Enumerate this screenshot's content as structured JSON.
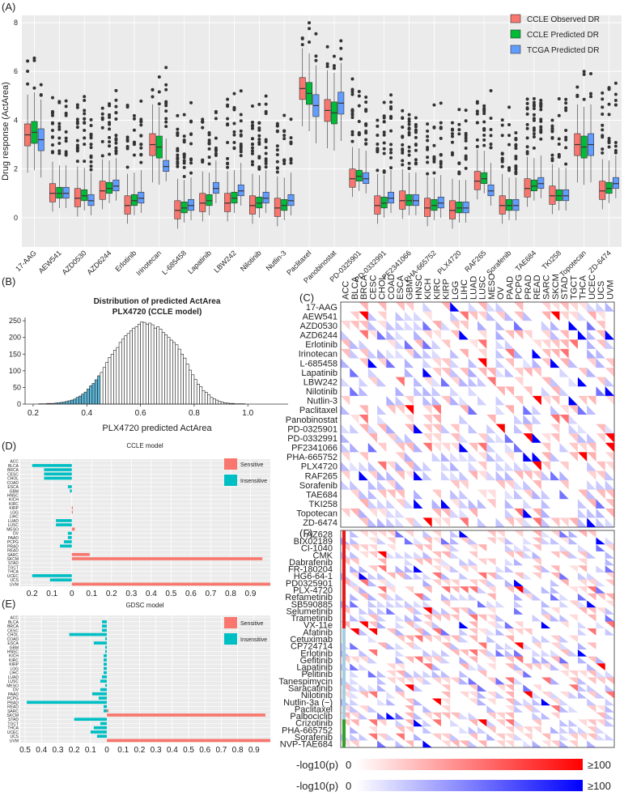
{
  "panel_labels": {
    "a": "(A)",
    "b": "(B)",
    "c": "(C)",
    "d": "(D)",
    "e": "(E)",
    "f": "(F)"
  },
  "colors": {
    "observed": "#F8766D",
    "predicted": "#00BA38",
    "tcga": "#619CFF",
    "sensitive": "#F8766D",
    "insensitive": "#00BFC4",
    "panel_bg": "#EBEBEB",
    "red": "#FF0000",
    "blue": "#0000FF",
    "hist_blue": "#5AB4D6",
    "hist_red": "#C0141E"
  },
  "chart_data": [
    {
      "type": "box",
      "ylabel": "Drug response (ActArea)",
      "ylim": [
        -1.2,
        8.3
      ],
      "yticks": [
        0,
        2,
        4,
        6,
        8
      ],
      "legend_position": "top-right",
      "series": [
        {
          "name": "CCLE Observed DR"
        },
        {
          "name": "CCLE Predicted DR"
        },
        {
          "name": "TCGA Predicted DR"
        }
      ],
      "categories": [
        "17-AAG",
        "AEW541",
        "AZD0530",
        "AZD6244",
        "Erlotinib",
        "Irinotecan",
        "L-685458",
        "Lapatinib",
        "LBW242",
        "Nilotinib",
        "Nutlin-3",
        "Paclitaxel",
        "Panobinostat",
        "PD-0325901",
        "PD-0332991",
        "PF2341066",
        "PHA-665752",
        "PLX4720",
        "RAF265",
        "Sorafenib",
        "TAE684",
        "TKI258",
        "Topotecan",
        "ZD-6474"
      ],
      "medians": [
        [
          3.4,
          3.5,
          3.2
        ],
        [
          1.0,
          1.0,
          1.0
        ],
        [
          0.8,
          0.9,
          0.7
        ],
        [
          1.1,
          1.2,
          1.3
        ],
        [
          0.5,
          0.7,
          0.8
        ],
        [
          3.0,
          2.9,
          2.1
        ],
        [
          0.3,
          0.4,
          0.5
        ],
        [
          0.6,
          0.7,
          1.2
        ],
        [
          0.6,
          0.8,
          1.1
        ],
        [
          0.5,
          0.6,
          0.8
        ],
        [
          0.4,
          0.5,
          0.7
        ],
        [
          5.3,
          5.1,
          4.6
        ],
        [
          4.4,
          4.3,
          4.7
        ],
        [
          1.6,
          1.7,
          1.6
        ],
        [
          0.5,
          0.6,
          0.8
        ],
        [
          0.7,
          0.7,
          0.7
        ],
        [
          0.4,
          0.5,
          0.6
        ],
        [
          0.3,
          0.4,
          0.4
        ],
        [
          1.5,
          1.6,
          1.1
        ],
        [
          0.5,
          0.5,
          0.5
        ],
        [
          1.2,
          1.3,
          1.4
        ],
        [
          0.9,
          0.9,
          0.9
        ],
        [
          3.0,
          2.9,
          3.0
        ],
        [
          1.1,
          1.2,
          1.4
        ]
      ]
    },
    {
      "type": "bar",
      "title": "Distribution of predicted ActArea",
      "subtitle": "PLX4720 (CCLE model)",
      "xlabel": "PLX4720 predicted ActArea",
      "xlim": [
        0.17,
        1.15
      ],
      "ylim": [
        0,
        260
      ],
      "xticks": [
        0.2,
        0.4,
        0.6,
        0.8,
        1.0
      ],
      "xtick_labels": [
        "0.2",
        "0.4",
        "0.6",
        "0.8",
        "1.0"
      ],
      "yticks": [
        0,
        50,
        100,
        150,
        200,
        250
      ],
      "bin_start": 0.22,
      "bin_width": 0.01,
      "low_cutoff": 0.45,
      "high_cutoff": 0.94,
      "counts": [
        1,
        1,
        1,
        2,
        2,
        2,
        3,
        4,
        5,
        6,
        8,
        10,
        12,
        15,
        20,
        24,
        30,
        36,
        45,
        55,
        62,
        73,
        85,
        95,
        110,
        125,
        140,
        150,
        162,
        170,
        185,
        195,
        205,
        212,
        220,
        228,
        232,
        240,
        247,
        245,
        240,
        243,
        238,
        228,
        232,
        225,
        215,
        208,
        200,
        192,
        185,
        178,
        165,
        150,
        138,
        120,
        102,
        88,
        74,
        60,
        52,
        40,
        35,
        28,
        20,
        16,
        12,
        8,
        6,
        4,
        3,
        2,
        2,
        1,
        1,
        1,
        1
      ]
    },
    {
      "type": "heatmap",
      "columns": [
        "ACC",
        "BLCA",
        "BRCA",
        "CESC",
        "CHOL",
        "COAD",
        "ESCA",
        "GBM",
        "HNSC",
        "KICH",
        "KIRC",
        "KIRP",
        "LGG",
        "LIHC",
        "LUAD",
        "LUSC",
        "MESO",
        "OV",
        "PAAD",
        "PCPG",
        "PRAD",
        "READ",
        "SARC",
        "SKCM",
        "STAD",
        "TGCT",
        "THCA",
        "UCEC",
        "UCS",
        "UVM"
      ],
      "rows": [
        "17-AAG",
        "AEW541",
        "AZD0530",
        "AZD6244",
        "Erlotinib",
        "Irinotecan",
        "L-685458",
        "Lapatinib",
        "LBW242",
        "Nilotinib",
        "Nutlin-3",
        "Paclitaxel",
        "Panobinostat",
        "PD-0325901",
        "PD-0332991",
        "PF2341066",
        "PHA-665752",
        "PLX4720",
        "RAF265",
        "Sorafenib",
        "TAE684",
        "TKI258",
        "Topotecan",
        "ZD-6474"
      ]
    },
    {
      "type": "bar",
      "title": "CCLE model",
      "orientation": "horizontal",
      "categories": [
        "ACC",
        "BLCA",
        "BRCA",
        "CESC",
        "CHOL",
        "COAD",
        "ESCA",
        "GBM",
        "HNSC",
        "KICH",
        "KIRC",
        "KIRP",
        "LGG",
        "LIHC",
        "LUAD",
        "LUSC",
        "MESO",
        "OV",
        "PAAD",
        "PCPG",
        "PRAD",
        "READ",
        "SARC",
        "SKCM",
        "STAD",
        "TGCT",
        "THCA",
        "UCEC",
        "UCS",
        "UVM"
      ],
      "xlim": [
        -0.26,
        1.0
      ],
      "xticks": [
        -0.2,
        -0.1,
        0,
        0.1,
        0.2,
        0.3,
        0.4,
        0.5,
        0.6,
        0.7,
        0.8,
        0.9
      ],
      "xtick_labels": [
        "0.2",
        "0.1",
        "0",
        "0.1",
        "0.2",
        "0.3",
        "0.4",
        "0.5",
        "0.6",
        "0.7",
        "0.8",
        "0.9"
      ],
      "legend_position": "top-right",
      "series": [
        {
          "name": "Sensitive",
          "values": [
            0,
            0,
            0,
            0,
            0,
            0,
            0,
            0,
            0,
            0,
            0,
            0.005,
            0.005,
            0,
            0,
            0,
            0.015,
            0,
            0,
            0,
            0,
            0,
            0.09,
            0.96,
            0,
            0,
            0,
            0,
            0,
            1.0
          ]
        },
        {
          "name": "Insensitive",
          "values": [
            0,
            0.2,
            0.14,
            0.14,
            0.14,
            0,
            0.02,
            0.01,
            0,
            0,
            0,
            0,
            0,
            0,
            0.08,
            0.08,
            0,
            0.02,
            0.02,
            0.04,
            0.06,
            0,
            0,
            0,
            0,
            0,
            0,
            0.2,
            0.11,
            0
          ]
        }
      ]
    },
    {
      "type": "bar",
      "title": "GDSC model",
      "orientation": "horizontal",
      "categories": [
        "ACC",
        "BLCA",
        "BRCA",
        "CESC",
        "CHOL",
        "COAD",
        "ESCA",
        "GBM",
        "HNSC",
        "KICH",
        "KIRC",
        "KIRP",
        "LGG",
        "LIHC",
        "LUAD",
        "LUSC",
        "MESO",
        "OV",
        "PAAD",
        "PCPG",
        "PRAD",
        "READ",
        "SARC",
        "SKCM",
        "STAD",
        "TGCT",
        "THCA",
        "UCEC",
        "UCS",
        "UVM"
      ],
      "xlim": [
        -0.53,
        1.0
      ],
      "xticks": [
        -0.5,
        -0.4,
        -0.3,
        -0.2,
        -0.1,
        0,
        0.1,
        0.2,
        0.3,
        0.4,
        0.5,
        0.6,
        0.7,
        0.8,
        0.9
      ],
      "xtick_labels": [
        "0.5",
        "0.4",
        "0.3",
        "0.2",
        "0.1",
        "0",
        "0.1",
        "0.2",
        "0.3",
        "0.4",
        "0.5",
        "0.6",
        "0.7",
        "0.8",
        "0.9"
      ],
      "legend_position": "top-right",
      "series": [
        {
          "name": "Sensitive",
          "values": [
            0,
            0,
            0,
            0,
            0,
            0,
            0,
            0,
            0,
            0,
            0,
            0,
            0,
            0,
            0,
            0,
            0,
            0,
            0,
            0,
            0,
            0,
            0.01,
            0.97,
            0,
            0,
            0,
            0,
            0,
            1.0
          ]
        },
        {
          "name": "Insensitive",
          "values": [
            0,
            0.03,
            0.03,
            0.03,
            0.23,
            0.01,
            0.08,
            0.01,
            0.01,
            0.02,
            0.02,
            0.02,
            0.02,
            0.02,
            0.03,
            0.04,
            0.01,
            0.04,
            0.09,
            0.05,
            0.49,
            0.02,
            0.02,
            0,
            0.2,
            0.04,
            0.08,
            0.1,
            0.06,
            0
          ]
        }
      ]
    },
    {
      "type": "heatmap",
      "columns": [
        "ACC",
        "BLCA",
        "BRCA",
        "CESC",
        "CHOL",
        "COAD",
        "ESCA",
        "GBM",
        "HNSC",
        "KICH",
        "KIRC",
        "KIRP",
        "LGG",
        "LIHC",
        "LUAD",
        "LUSC",
        "MESO",
        "OV",
        "PAAD",
        "PCPG",
        "PRAD",
        "READ",
        "SARC",
        "SKCM",
        "STAD",
        "TGCT",
        "THCA",
        "UCEC",
        "UCS",
        "UVM"
      ],
      "rows": [
        "AZ628",
        "BIX02189",
        "CI-1040",
        "CMK",
        "Dabrafenib",
        "FR-180204",
        "HG6-64-1",
        "PD0325901",
        "PLX-4720",
        "Refametinib",
        "SB590885",
        "Selumetinib",
        "Trametinib",
        "VX-11e",
        "Afatinib",
        "Cetuximab",
        "CP724714",
        "Erlotinib",
        "Gefitinib",
        "Lapatinib",
        "Pelitinib",
        "Tanespimycin",
        "Saracatinib",
        "Nilotinib",
        "Nutlin-3a (−)",
        "Paclitaxel",
        "Palbociclib",
        "Crizotinib",
        "PHA-665752",
        "Sorafenib",
        "NVP-TAE684"
      ],
      "group_bar_colors": [
        "#E31A1C",
        "#A6CEE3",
        "#33A02C"
      ]
    }
  ],
  "color_scale": {
    "label": "-log10(p)",
    "min_label": "0",
    "max_label": "≥100"
  }
}
